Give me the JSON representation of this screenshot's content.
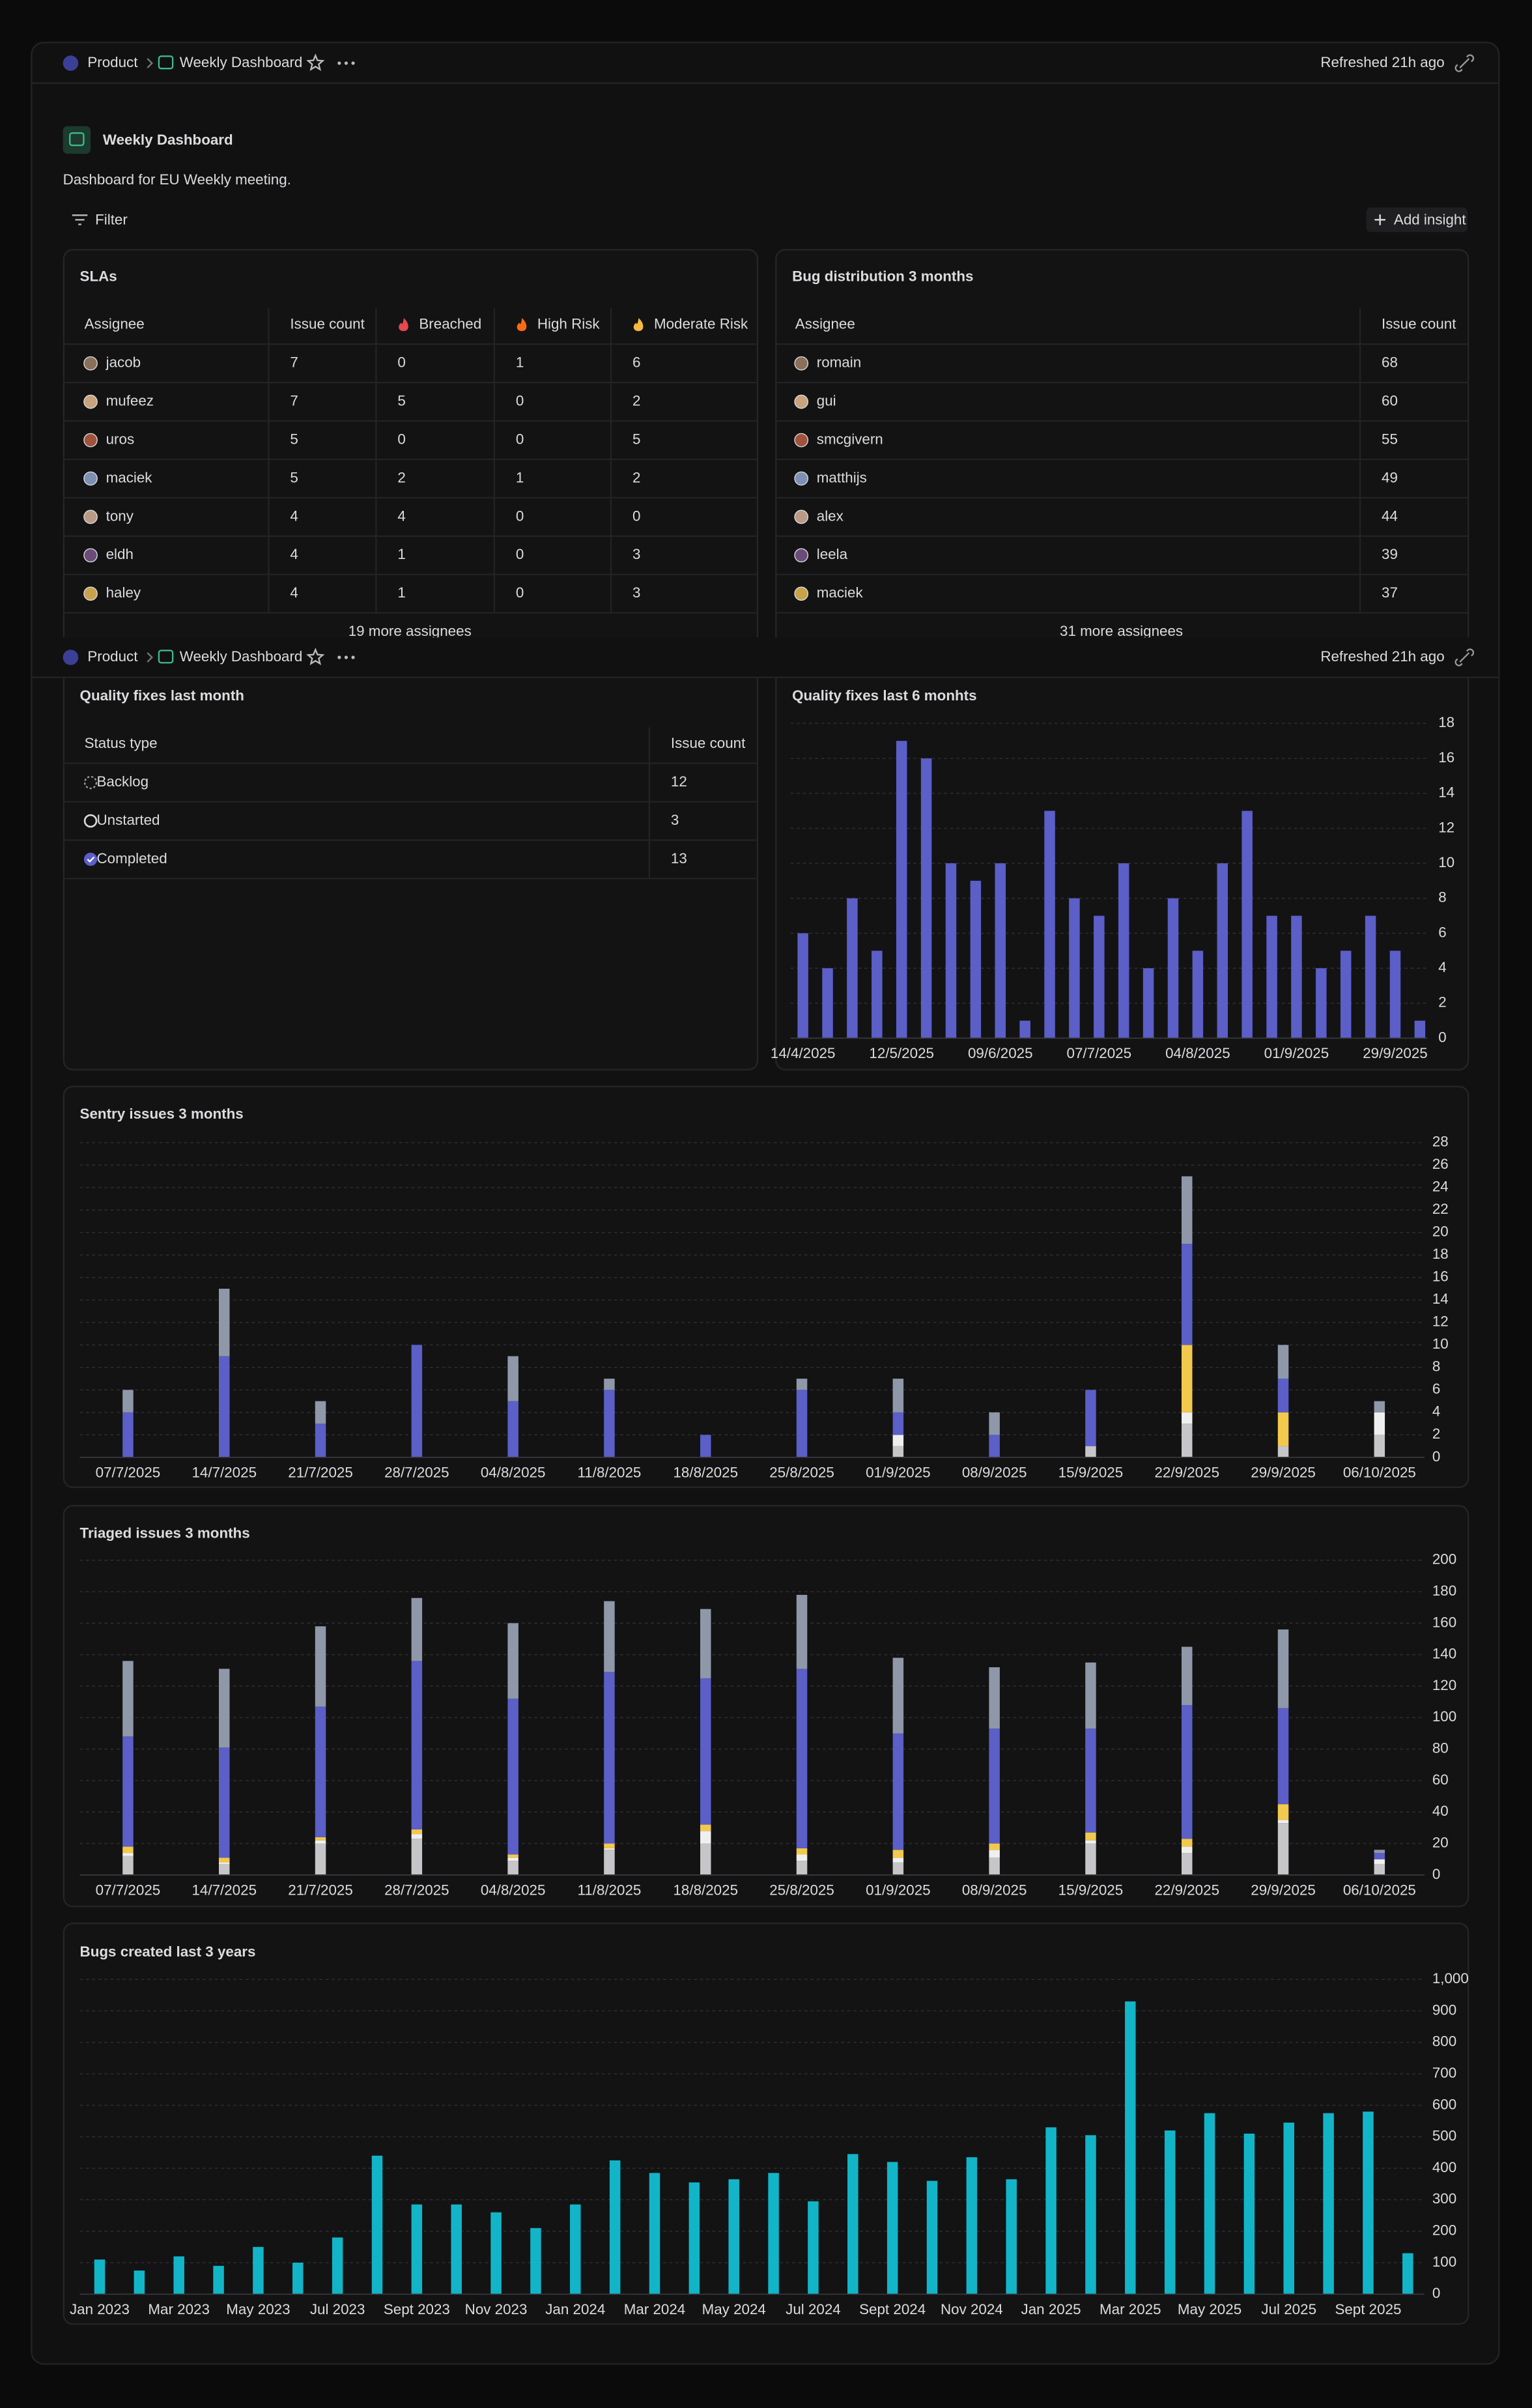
{
  "header": {
    "product": "Product",
    "dashboard": "Weekly Dashboard",
    "refreshed": "Refreshed 21h ago"
  },
  "dashboard": {
    "title": "Weekly Dashboard",
    "description": "Dashboard for EU Weekly meeting."
  },
  "toolbar": {
    "filter": "Filter",
    "add_insight": "Add insight"
  },
  "slas": {
    "title": "SLAs",
    "columns": [
      "Assignee",
      "Issue count",
      "Breached",
      "High Risk",
      "Moderate Risk"
    ],
    "rows": [
      [
        "jacob",
        7,
        0,
        1,
        6
      ],
      [
        "mufeez",
        7,
        5,
        0,
        2
      ],
      [
        "uros",
        5,
        0,
        0,
        5
      ],
      [
        "maciek",
        5,
        2,
        1,
        2
      ],
      [
        "tony",
        4,
        4,
        0,
        0
      ],
      [
        "eldh",
        4,
        1,
        0,
        3
      ],
      [
        "haley",
        4,
        1,
        0,
        3
      ]
    ],
    "footer": "19 more assignees"
  },
  "bug_distribution": {
    "title": "Bug distribution 3 months",
    "columns": [
      "Assignee",
      "Issue count"
    ],
    "rows": [
      [
        "romain",
        68
      ],
      [
        "gui",
        60
      ],
      [
        "smcgivern",
        55
      ],
      [
        "matthijs",
        49
      ],
      [
        "alex",
        44
      ],
      [
        "leela",
        39
      ],
      [
        "maciek",
        37
      ]
    ],
    "footer": "31 more assignees"
  },
  "quality_fixes_month": {
    "title": "Quality fixes last month",
    "columns": [
      "Status type",
      "Issue count"
    ],
    "rows": [
      [
        "Backlog",
        12
      ],
      [
        "Unstarted",
        3
      ],
      [
        "Completed",
        13
      ]
    ]
  },
  "chart_data": [
    {
      "type": "bar",
      "title": "Quality fixes last 6 monhts",
      "categories": [
        "14/4/2025",
        null,
        null,
        null,
        "12/5/2025",
        null,
        null,
        null,
        "09/6/2025",
        null,
        null,
        null,
        "07/7/2025",
        null,
        null,
        null,
        "04/8/2025",
        null,
        null,
        null,
        "01/9/2025",
        null,
        null,
        null,
        "29/9/2025",
        null
      ],
      "values": [
        6,
        4,
        8,
        5,
        17,
        16,
        10,
        9,
        10,
        1,
        13,
        8,
        7,
        10,
        4,
        8,
        5,
        10,
        13,
        7,
        7,
        4,
        5,
        7,
        5,
        1
      ],
      "color": "#5b5fc7",
      "ylim": [
        0,
        18
      ],
      "yticks": [
        0,
        2,
        4,
        6,
        8,
        10,
        12,
        14,
        16,
        18
      ],
      "grid": true
    },
    {
      "type": "stacked_bar",
      "title": "Sentry issues 3 months",
      "categories": [
        "07/7/2025",
        "14/7/2025",
        "21/7/2025",
        "28/7/2025",
        "04/8/2025",
        "11/8/2025",
        "18/8/2025",
        "25/8/2025",
        "01/9/2025",
        "08/9/2025",
        "15/9/2025",
        "22/9/2025",
        "29/9/2025",
        "06/10/2025"
      ],
      "series": [
        {
          "color": "#c6c6c9",
          "values": [
            0,
            0,
            0,
            0,
            0,
            0,
            0,
            0,
            1,
            0,
            1,
            3,
            1,
            2
          ]
        },
        {
          "color": "#efefef",
          "values": [
            0,
            0,
            0,
            0,
            0,
            0,
            0,
            0,
            1,
            0,
            0,
            1,
            0,
            2
          ]
        },
        {
          "color": "#f2c94c",
          "values": [
            0,
            0,
            0,
            0,
            0,
            0,
            0,
            0,
            0,
            0,
            0,
            6,
            3,
            0
          ]
        },
        {
          "color": "#5b5fc7",
          "values": [
            4,
            9,
            3,
            10,
            5,
            6,
            2,
            6,
            2,
            2,
            5,
            9,
            3,
            0
          ]
        },
        {
          "color": "#8f98a8",
          "values": [
            2,
            6,
            2,
            0,
            4,
            1,
            0,
            1,
            3,
            2,
            0,
            6,
            3,
            1
          ]
        }
      ],
      "ylim": [
        0,
        28
      ],
      "yticks": [
        0,
        2,
        4,
        6,
        8,
        10,
        12,
        14,
        16,
        18,
        20,
        22,
        24,
        26,
        28
      ],
      "grid": true
    },
    {
      "type": "stacked_bar",
      "title": "Triaged issues 3 months",
      "categories": [
        "07/7/2025",
        "14/7/2025",
        "21/7/2025",
        "28/7/2025",
        "04/8/2025",
        "11/8/2025",
        "18/8/2025",
        "25/8/2025",
        "01/9/2025",
        "08/9/2025",
        "15/9/2025",
        "22/9/2025",
        "29/9/2025",
        "06/10/2025"
      ],
      "series": [
        {
          "color": "#c6c6c9",
          "values": [
            12,
            7,
            20,
            23,
            9,
            16,
            20,
            9,
            8,
            11,
            20,
            14,
            33,
            7
          ]
        },
        {
          "color": "#efefef",
          "values": [
            2,
            1,
            2,
            3,
            2,
            1,
            8,
            4,
            3,
            5,
            2,
            4,
            2,
            3
          ]
        },
        {
          "color": "#f2c94c",
          "values": [
            4,
            3,
            2,
            3,
            2,
            3,
            4,
            4,
            5,
            4,
            5,
            5,
            10,
            0
          ]
        },
        {
          "color": "#5b5fc7",
          "values": [
            70,
            70,
            83,
            107,
            99,
            109,
            93,
            114,
            74,
            73,
            66,
            85,
            61,
            4
          ]
        },
        {
          "color": "#8f98a8",
          "values": [
            48,
            50,
            51,
            40,
            48,
            45,
            44,
            47,
            48,
            39,
            42,
            37,
            50,
            2
          ]
        }
      ],
      "ylim": [
        0,
        200
      ],
      "yticks": [
        0,
        20,
        40,
        60,
        80,
        100,
        120,
        140,
        160,
        180,
        200
      ],
      "grid": true
    },
    {
      "type": "bar",
      "title": "Bugs created last 3 years",
      "categories": [
        "Jan 2023",
        null,
        "Mar 2023",
        null,
        "May 2023",
        null,
        "Jul 2023",
        null,
        "Sept 2023",
        null,
        "Nov 2023",
        null,
        "Jan 2024",
        null,
        "Mar 2024",
        null,
        "May 2024",
        null,
        "Jul 2024",
        null,
        "Sept 2024",
        null,
        "Nov 2024",
        null,
        "Jan 2025",
        null,
        "Mar 2025",
        null,
        "May 2025",
        null,
        "Jul 2025",
        null,
        "Sept 2025",
        null
      ],
      "values": [
        110,
        75,
        120,
        90,
        150,
        100,
        180,
        440,
        285,
        285,
        260,
        210,
        285,
        425,
        385,
        355,
        365,
        385,
        295,
        445,
        420,
        360,
        435,
        365,
        530,
        505,
        930,
        520,
        575,
        510,
        545,
        575,
        580,
        130
      ],
      "color": "#12b5c8",
      "ylim": [
        0,
        1000
      ],
      "yticks": [
        0,
        100,
        200,
        300,
        400,
        500,
        600,
        700,
        800,
        900,
        {
          "value": 1000,
          "label": "1,000"
        }
      ],
      "grid": true
    }
  ]
}
